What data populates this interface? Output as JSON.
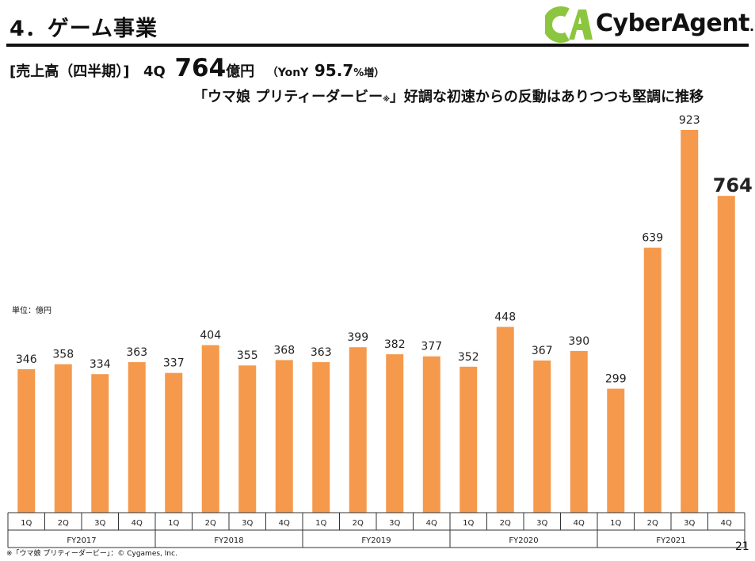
{
  "header": {
    "title": "4．ゲーム事業",
    "logo_text": "CyberAgent",
    "logo_mark": "CA",
    "logo_suffix": "."
  },
  "summary": {
    "label": "[売上高（四半期）]",
    "quarter": "4Q",
    "value": "764",
    "unit": "億円",
    "yoy_label": "（YonY",
    "yoy_value": "95.7",
    "yoy_unit": "%増）"
  },
  "subtitle": {
    "text_before": "「ウマ娘 プリティーダービー",
    "note_mark": "※",
    "text_after": "」好調な初速からの反動はありつつも堅調に推移"
  },
  "unit_label": "単位：億円",
  "footnote": "※「ウマ娘 プリティーダービー」：© Cygames, Inc.",
  "page_number": "21",
  "colors": {
    "bar": "#F5994C",
    "highlight_label": "#111111",
    "axis": "#333333"
  },
  "chart_data": {
    "type": "bar",
    "categories": [
      "1Q",
      "2Q",
      "3Q",
      "4Q",
      "1Q",
      "2Q",
      "3Q",
      "4Q",
      "1Q",
      "2Q",
      "3Q",
      "4Q",
      "1Q",
      "2Q",
      "3Q",
      "4Q",
      "1Q",
      "2Q",
      "3Q",
      "4Q"
    ],
    "groups": [
      {
        "name": "FY2017",
        "count": 4
      },
      {
        "name": "FY2018",
        "count": 4
      },
      {
        "name": "FY2019",
        "count": 4
      },
      {
        "name": "FY2020",
        "count": 4
      },
      {
        "name": "FY2021",
        "count": 4
      }
    ],
    "values": [
      346,
      358,
      334,
      363,
      337,
      404,
      355,
      368,
      363,
      399,
      382,
      377,
      352,
      448,
      367,
      390,
      299,
      639,
      923,
      764
    ],
    "highlight_index": 19,
    "ylim": [
      0,
      923
    ],
    "grid": false
  }
}
